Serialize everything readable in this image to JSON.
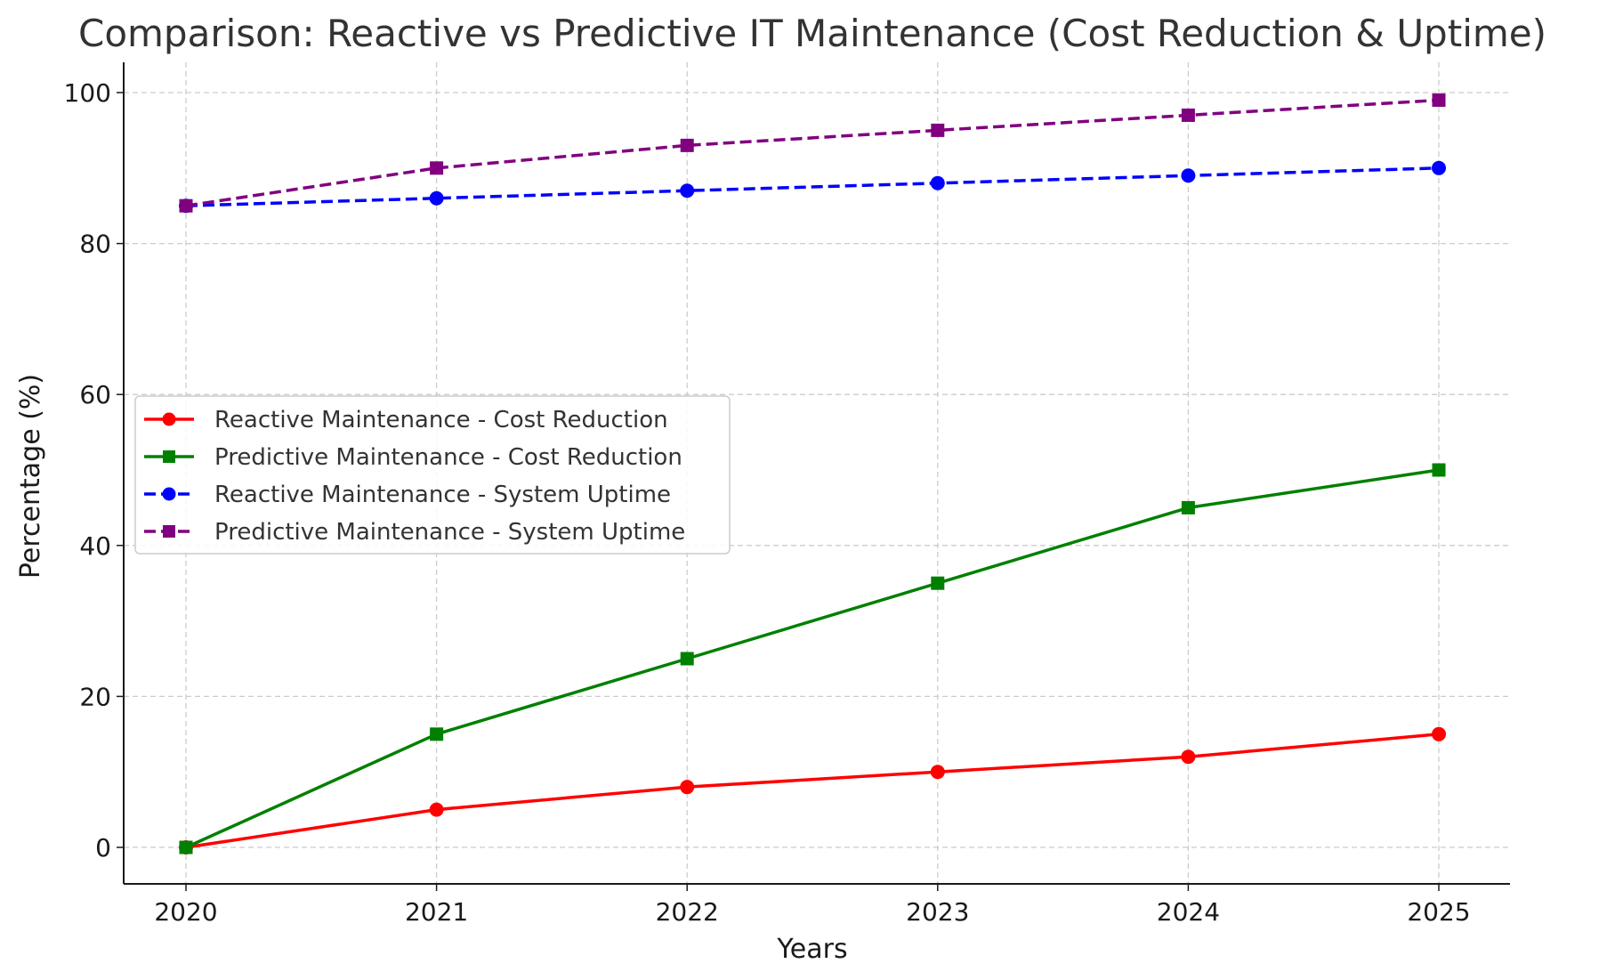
{
  "chart_data": {
    "type": "line",
    "title": "Comparison: Reactive vs Predictive IT Maintenance (Cost Reduction & Uptime)",
    "xlabel": "Years",
    "ylabel": "Percentage (%)",
    "categories": [
      "2020",
      "2021",
      "2022",
      "2023",
      "2024",
      "2025"
    ],
    "ylim": [
      -5,
      104
    ],
    "yticks": [
      0,
      20,
      40,
      60,
      80,
      100
    ],
    "grid": true,
    "legend_position": "center-left",
    "series": [
      {
        "name": "Reactive Maintenance - Cost Reduction",
        "values": [
          0,
          5,
          8,
          10,
          12,
          15
        ],
        "color": "#ff0000",
        "marker": "circle",
        "dashed": false
      },
      {
        "name": "Predictive Maintenance - Cost Reduction",
        "values": [
          0,
          15,
          25,
          35,
          45,
          50
        ],
        "color": "#008000",
        "marker": "square",
        "dashed": false
      },
      {
        "name": "Reactive Maintenance - System Uptime",
        "values": [
          85,
          86,
          87,
          88,
          89,
          90
        ],
        "color": "#0000ff",
        "marker": "circle",
        "dashed": true
      },
      {
        "name": "Predictive Maintenance - System Uptime",
        "values": [
          85,
          90,
          93,
          95,
          97,
          99
        ],
        "color": "#800080",
        "marker": "square",
        "dashed": true
      }
    ]
  }
}
